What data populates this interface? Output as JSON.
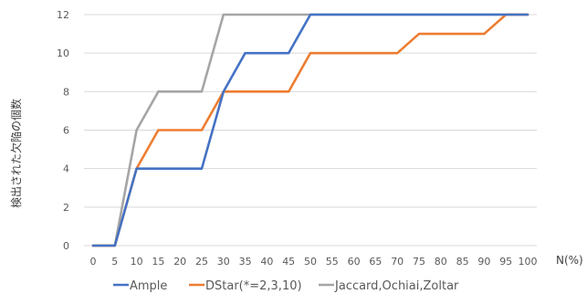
{
  "chart_data": {
    "type": "line",
    "title": "",
    "xlabel": "N(%)",
    "ylabel": "検出された欠陥の個数",
    "x": [
      0,
      5,
      10,
      15,
      20,
      25,
      30,
      35,
      40,
      45,
      50,
      55,
      60,
      65,
      70,
      75,
      80,
      85,
      90,
      95,
      100
    ],
    "ylim": [
      0,
      12
    ],
    "yticks": [
      0,
      2,
      4,
      6,
      8,
      10,
      12
    ],
    "grid": true,
    "legend_position": "bottom",
    "series": [
      {
        "name": "Ample",
        "color": "#4472C4",
        "values": [
          0,
          0,
          4,
          4,
          4,
          4,
          8,
          10,
          10,
          10,
          12,
          12,
          12,
          12,
          12,
          12,
          12,
          12,
          12,
          12,
          12
        ]
      },
      {
        "name": "DStar(*=2,3,10)",
        "color": "#ED7D31",
        "values": [
          0,
          0,
          4,
          6,
          6,
          6,
          8,
          8,
          8,
          8,
          10,
          10,
          10,
          10,
          10,
          11,
          11,
          11,
          11,
          12,
          12
        ]
      },
      {
        "name": "Jaccard,Ochiai,Zoltar",
        "color": "#A5A5A5",
        "values": [
          0,
          0,
          6,
          8,
          8,
          8,
          12,
          12,
          12,
          12,
          12,
          12,
          12,
          12,
          12,
          12,
          12,
          12,
          12,
          12,
          12
        ]
      }
    ]
  }
}
